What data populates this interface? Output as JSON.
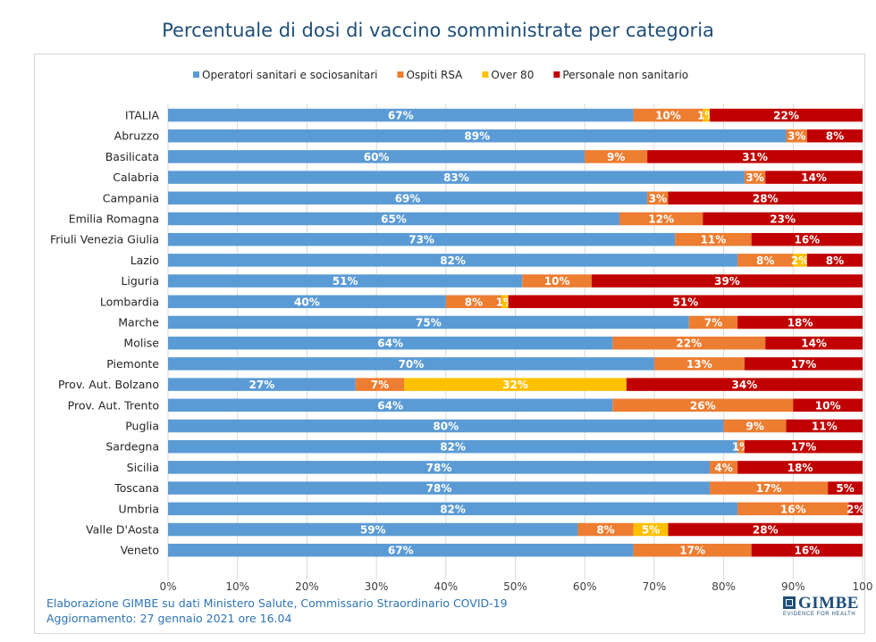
{
  "chart_data": {
    "type": "bar",
    "orientation": "horizontal",
    "stacked": true,
    "title": "Percentuale di dosi di vaccino somministrate per categoria",
    "legend_position": "top",
    "grid": true,
    "xlim": [
      0,
      100
    ],
    "x_ticks": [
      "0%",
      "10%",
      "20%",
      "30%",
      "40%",
      "50%",
      "60%",
      "70%",
      "80%",
      "90%",
      "100"
    ],
    "categories": [
      "ITALIA",
      "Abruzzo",
      "Basilicata",
      "Calabria",
      "Campania",
      "Emilia Romagna",
      "Friuli Venezia Giulia",
      "Lazio",
      "Liguria",
      "Lombardia",
      "Marche",
      "Molise",
      "Piemonte",
      "Prov. Aut. Bolzano",
      "Prov. Aut. Trento",
      "Puglia",
      "Sardegna",
      "Sicilia",
      "Toscana",
      "Umbria",
      "Valle D'Aosta",
      "Veneto"
    ],
    "series": [
      {
        "name": "Operatori sanitari e sociosanitari",
        "color": "#5B9BD5",
        "values": [
          67,
          89,
          60,
          83,
          69,
          65,
          73,
          82,
          51,
          40,
          75,
          64,
          70,
          27,
          64,
          80,
          82,
          78,
          78,
          82,
          59,
          67
        ]
      },
      {
        "name": "Ospiti RSA",
        "color": "#ED7D31",
        "values": [
          10,
          3,
          9,
          3,
          3,
          12,
          11,
          8,
          10,
          8,
          7,
          22,
          13,
          7,
          26,
          9,
          1,
          4,
          17,
          16,
          8,
          17
        ]
      },
      {
        "name": "Over 80",
        "color": "#FFC000",
        "values": [
          1,
          0,
          0,
          0,
          0,
          0,
          0,
          2,
          0,
          1,
          0,
          0,
          0,
          32,
          0,
          0,
          0,
          0,
          0,
          0,
          5,
          0
        ]
      },
      {
        "name": "Personale non sanitario",
        "color": "#C00000",
        "values": [
          22,
          8,
          31,
          14,
          28,
          23,
          16,
          8,
          39,
          51,
          18,
          14,
          17,
          34,
          10,
          11,
          17,
          18,
          5,
          2,
          28,
          16
        ]
      }
    ],
    "labels": [
      [
        "67%",
        "10%",
        "1%",
        "22%"
      ],
      [
        "89%",
        "3%",
        "",
        "8%"
      ],
      [
        "60%",
        "9%",
        "",
        "31%"
      ],
      [
        "83%",
        "3%",
        "",
        "14%"
      ],
      [
        "69%",
        "3%",
        "",
        "28%"
      ],
      [
        "65%",
        "12%",
        "",
        "23%"
      ],
      [
        "73%",
        "11%",
        "",
        "16%"
      ],
      [
        "82%",
        "8%",
        "2%",
        "8%"
      ],
      [
        "51%",
        "10%",
        "",
        "39%"
      ],
      [
        "40%",
        "8%",
        "1%",
        "51%"
      ],
      [
        "75%",
        "7%",
        "",
        "18%"
      ],
      [
        "64%",
        "22%",
        "",
        "14%"
      ],
      [
        "70%",
        "13%",
        "",
        "17%"
      ],
      [
        "27%",
        "7%",
        "32%",
        "34%"
      ],
      [
        "64%",
        "26%",
        "",
        "10%"
      ],
      [
        "80%",
        "9%",
        "",
        "11%"
      ],
      [
        "82%",
        "1%",
        "",
        "17%"
      ],
      [
        "78%",
        "4%",
        "",
        "18%"
      ],
      [
        "78%",
        "17%",
        "",
        "5%"
      ],
      [
        "82%",
        "16%",
        "",
        "2%"
      ],
      [
        "59%",
        "8%",
        "5%",
        "28%"
      ],
      [
        "67%",
        "17%",
        "",
        "16%"
      ]
    ]
  },
  "footer": {
    "source": "Elaborazione GIMBE su dati Ministero Salute, Commissario Straordinario COVID-19",
    "updated": "Aggiornamento: 27 gennaio 2021 ore 16.04"
  },
  "logo": {
    "name": "GIMBE",
    "tagline": "EVIDENCE FOR HEALTH"
  }
}
